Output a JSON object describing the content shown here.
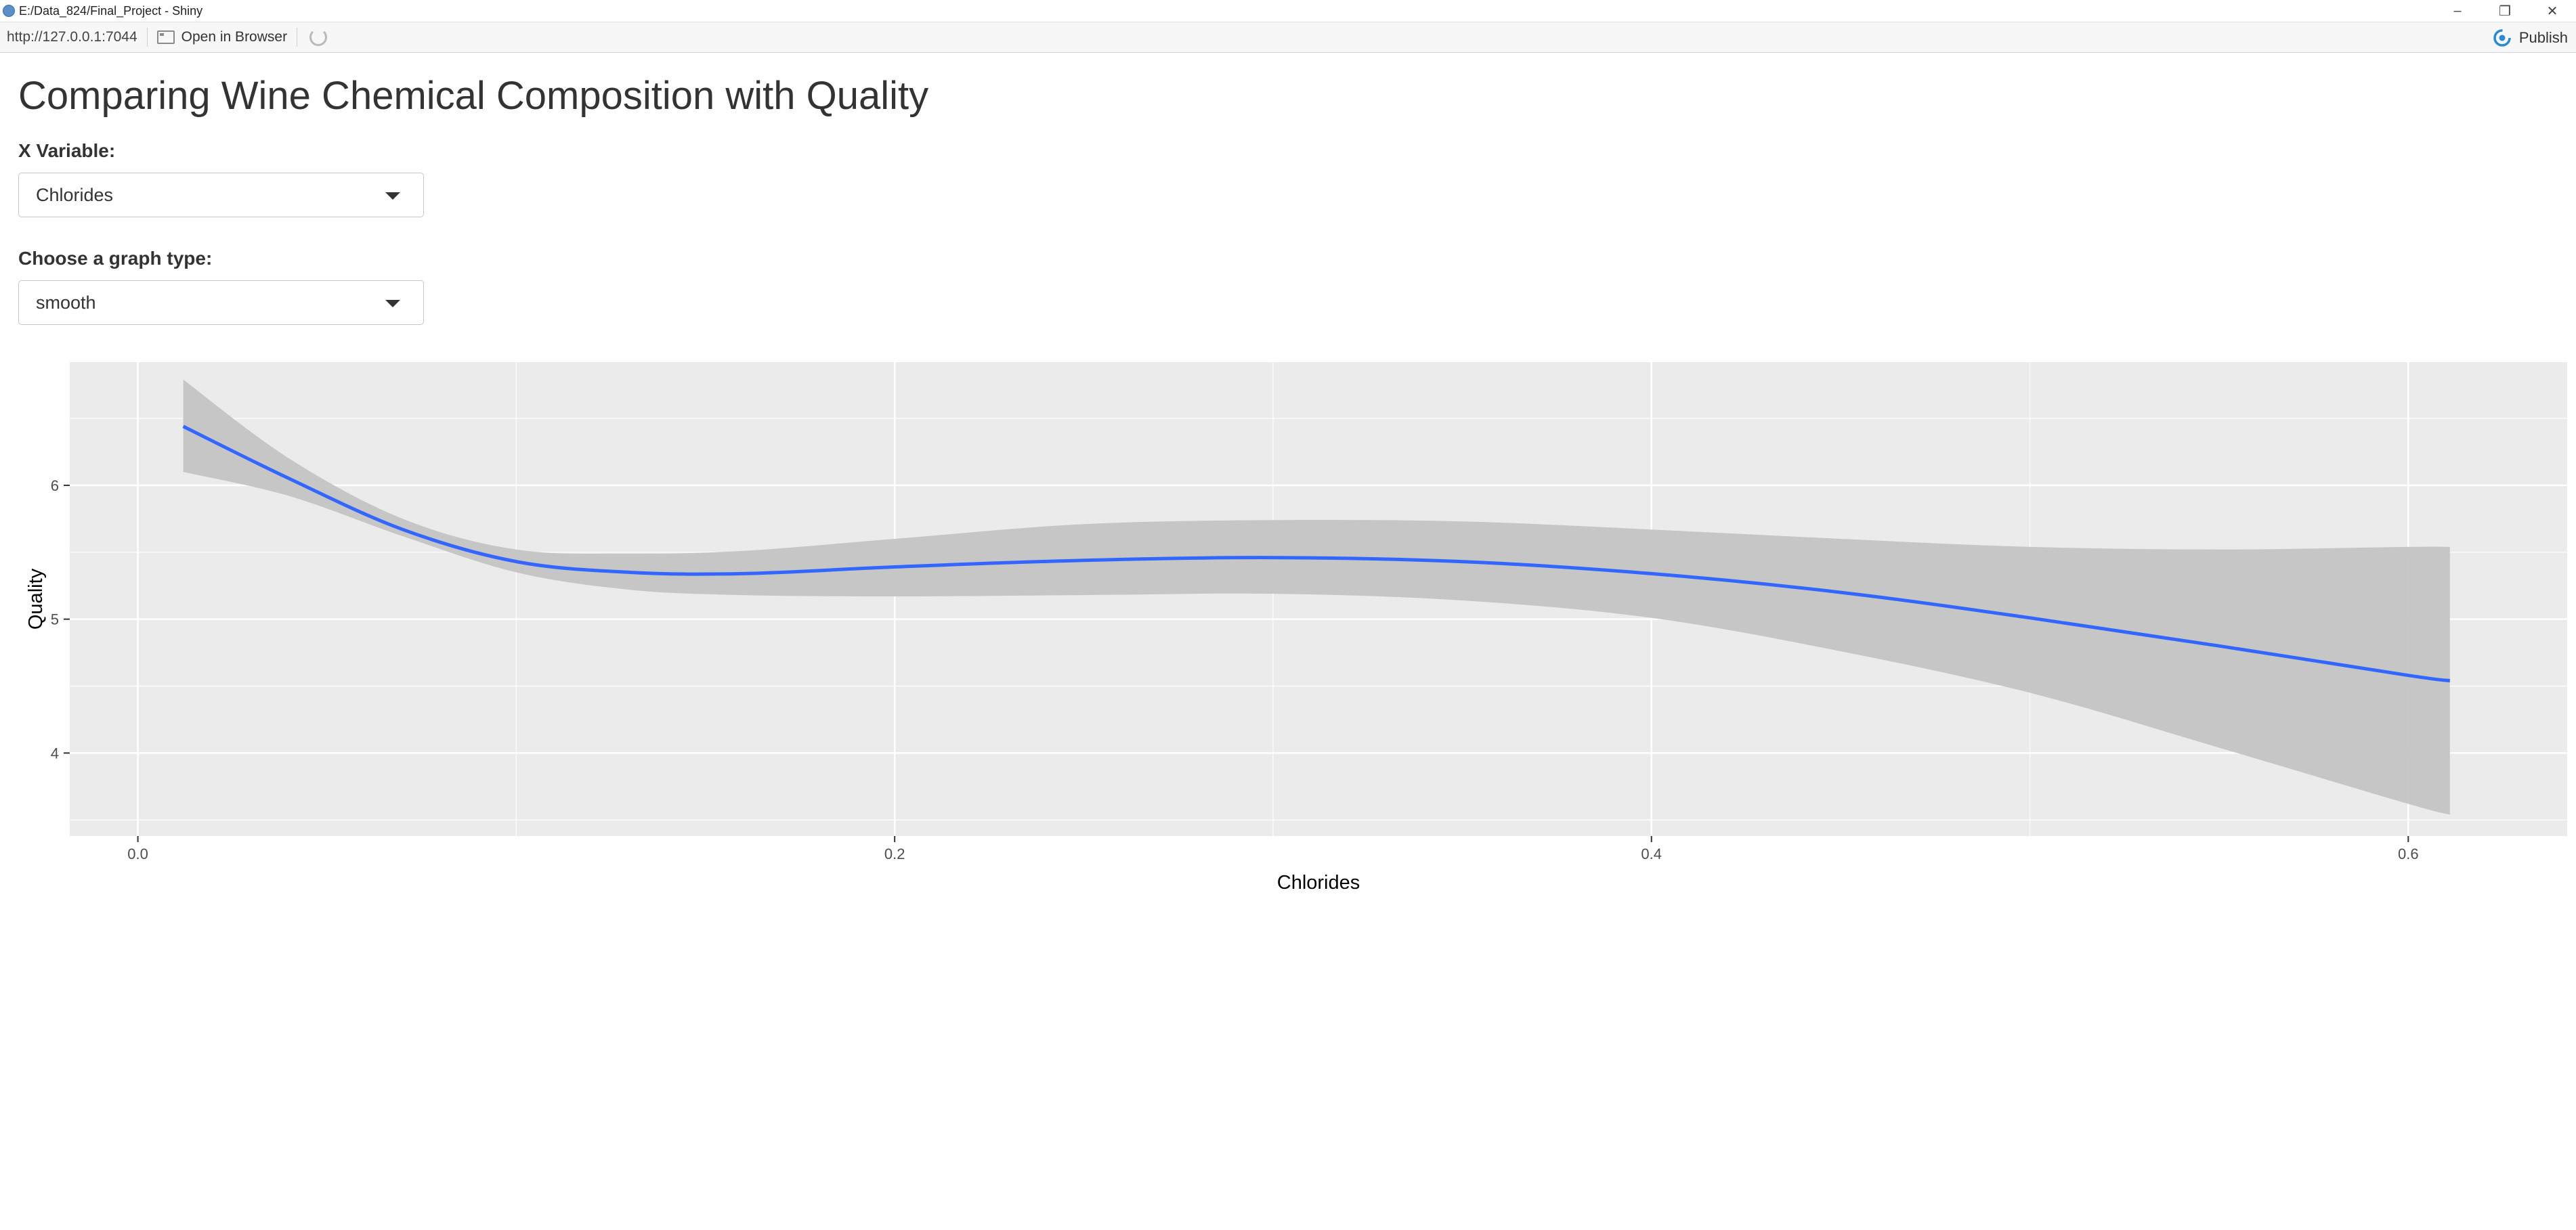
{
  "window": {
    "title": "E:/Data_824/Final_Project - Shiny",
    "controls": {
      "minimize": "–",
      "restore": "❐",
      "close": "✕"
    }
  },
  "toolbar": {
    "url": "http://127.0.0.1:7044",
    "open_in_browser": "Open in Browser",
    "publish": "Publish"
  },
  "page": {
    "title": "Comparing Wine Chemical Composition with Quality"
  },
  "controls": {
    "x_variable": {
      "label": "X Variable:",
      "value": "Chlorides"
    },
    "graph_type": {
      "label": "Choose a graph type:",
      "value": "smooth"
    }
  },
  "colors": {
    "panel_bg": "#ebebeb",
    "grid": "#ffffff",
    "ribbon": "#c4c4c4",
    "line": "#3366ff",
    "publish_accent": "#2a8bd0"
  },
  "chart_data": {
    "type": "line",
    "title": "",
    "xlabel": "Chlorides",
    "ylabel": "Quality",
    "xlim": [
      -0.018,
      0.642
    ],
    "ylim": [
      3.38,
      6.92
    ],
    "x_ticks": [
      0.0,
      0.2,
      0.4,
      0.6
    ],
    "x_tick_labels": [
      "0.0",
      "0.2",
      "0.4",
      "0.6"
    ],
    "y_ticks": [
      4,
      5,
      6
    ],
    "y_tick_labels": [
      "4",
      "5",
      "6"
    ],
    "grid": true,
    "series": [
      {
        "x": [
          0.012,
          0.04,
          0.07,
          0.1,
          0.13,
          0.16,
          0.2,
          0.25,
          0.3,
          0.35,
          0.4,
          0.45,
          0.5,
          0.55,
          0.6,
          0.611
        ],
        "y": [
          6.44,
          6.05,
          5.67,
          5.43,
          5.35,
          5.34,
          5.39,
          5.44,
          5.46,
          5.43,
          5.34,
          5.2,
          5.01,
          4.8,
          4.58,
          4.54
        ],
        "lower": [
          6.1,
          5.92,
          5.62,
          5.35,
          5.22,
          5.18,
          5.17,
          5.18,
          5.19,
          5.14,
          5.01,
          4.76,
          4.45,
          4.04,
          3.62,
          3.54
        ],
        "upper": [
          6.79,
          6.2,
          5.75,
          5.52,
          5.49,
          5.51,
          5.6,
          5.71,
          5.74,
          5.73,
          5.67,
          5.6,
          5.54,
          5.52,
          5.54,
          5.54
        ]
      }
    ]
  }
}
